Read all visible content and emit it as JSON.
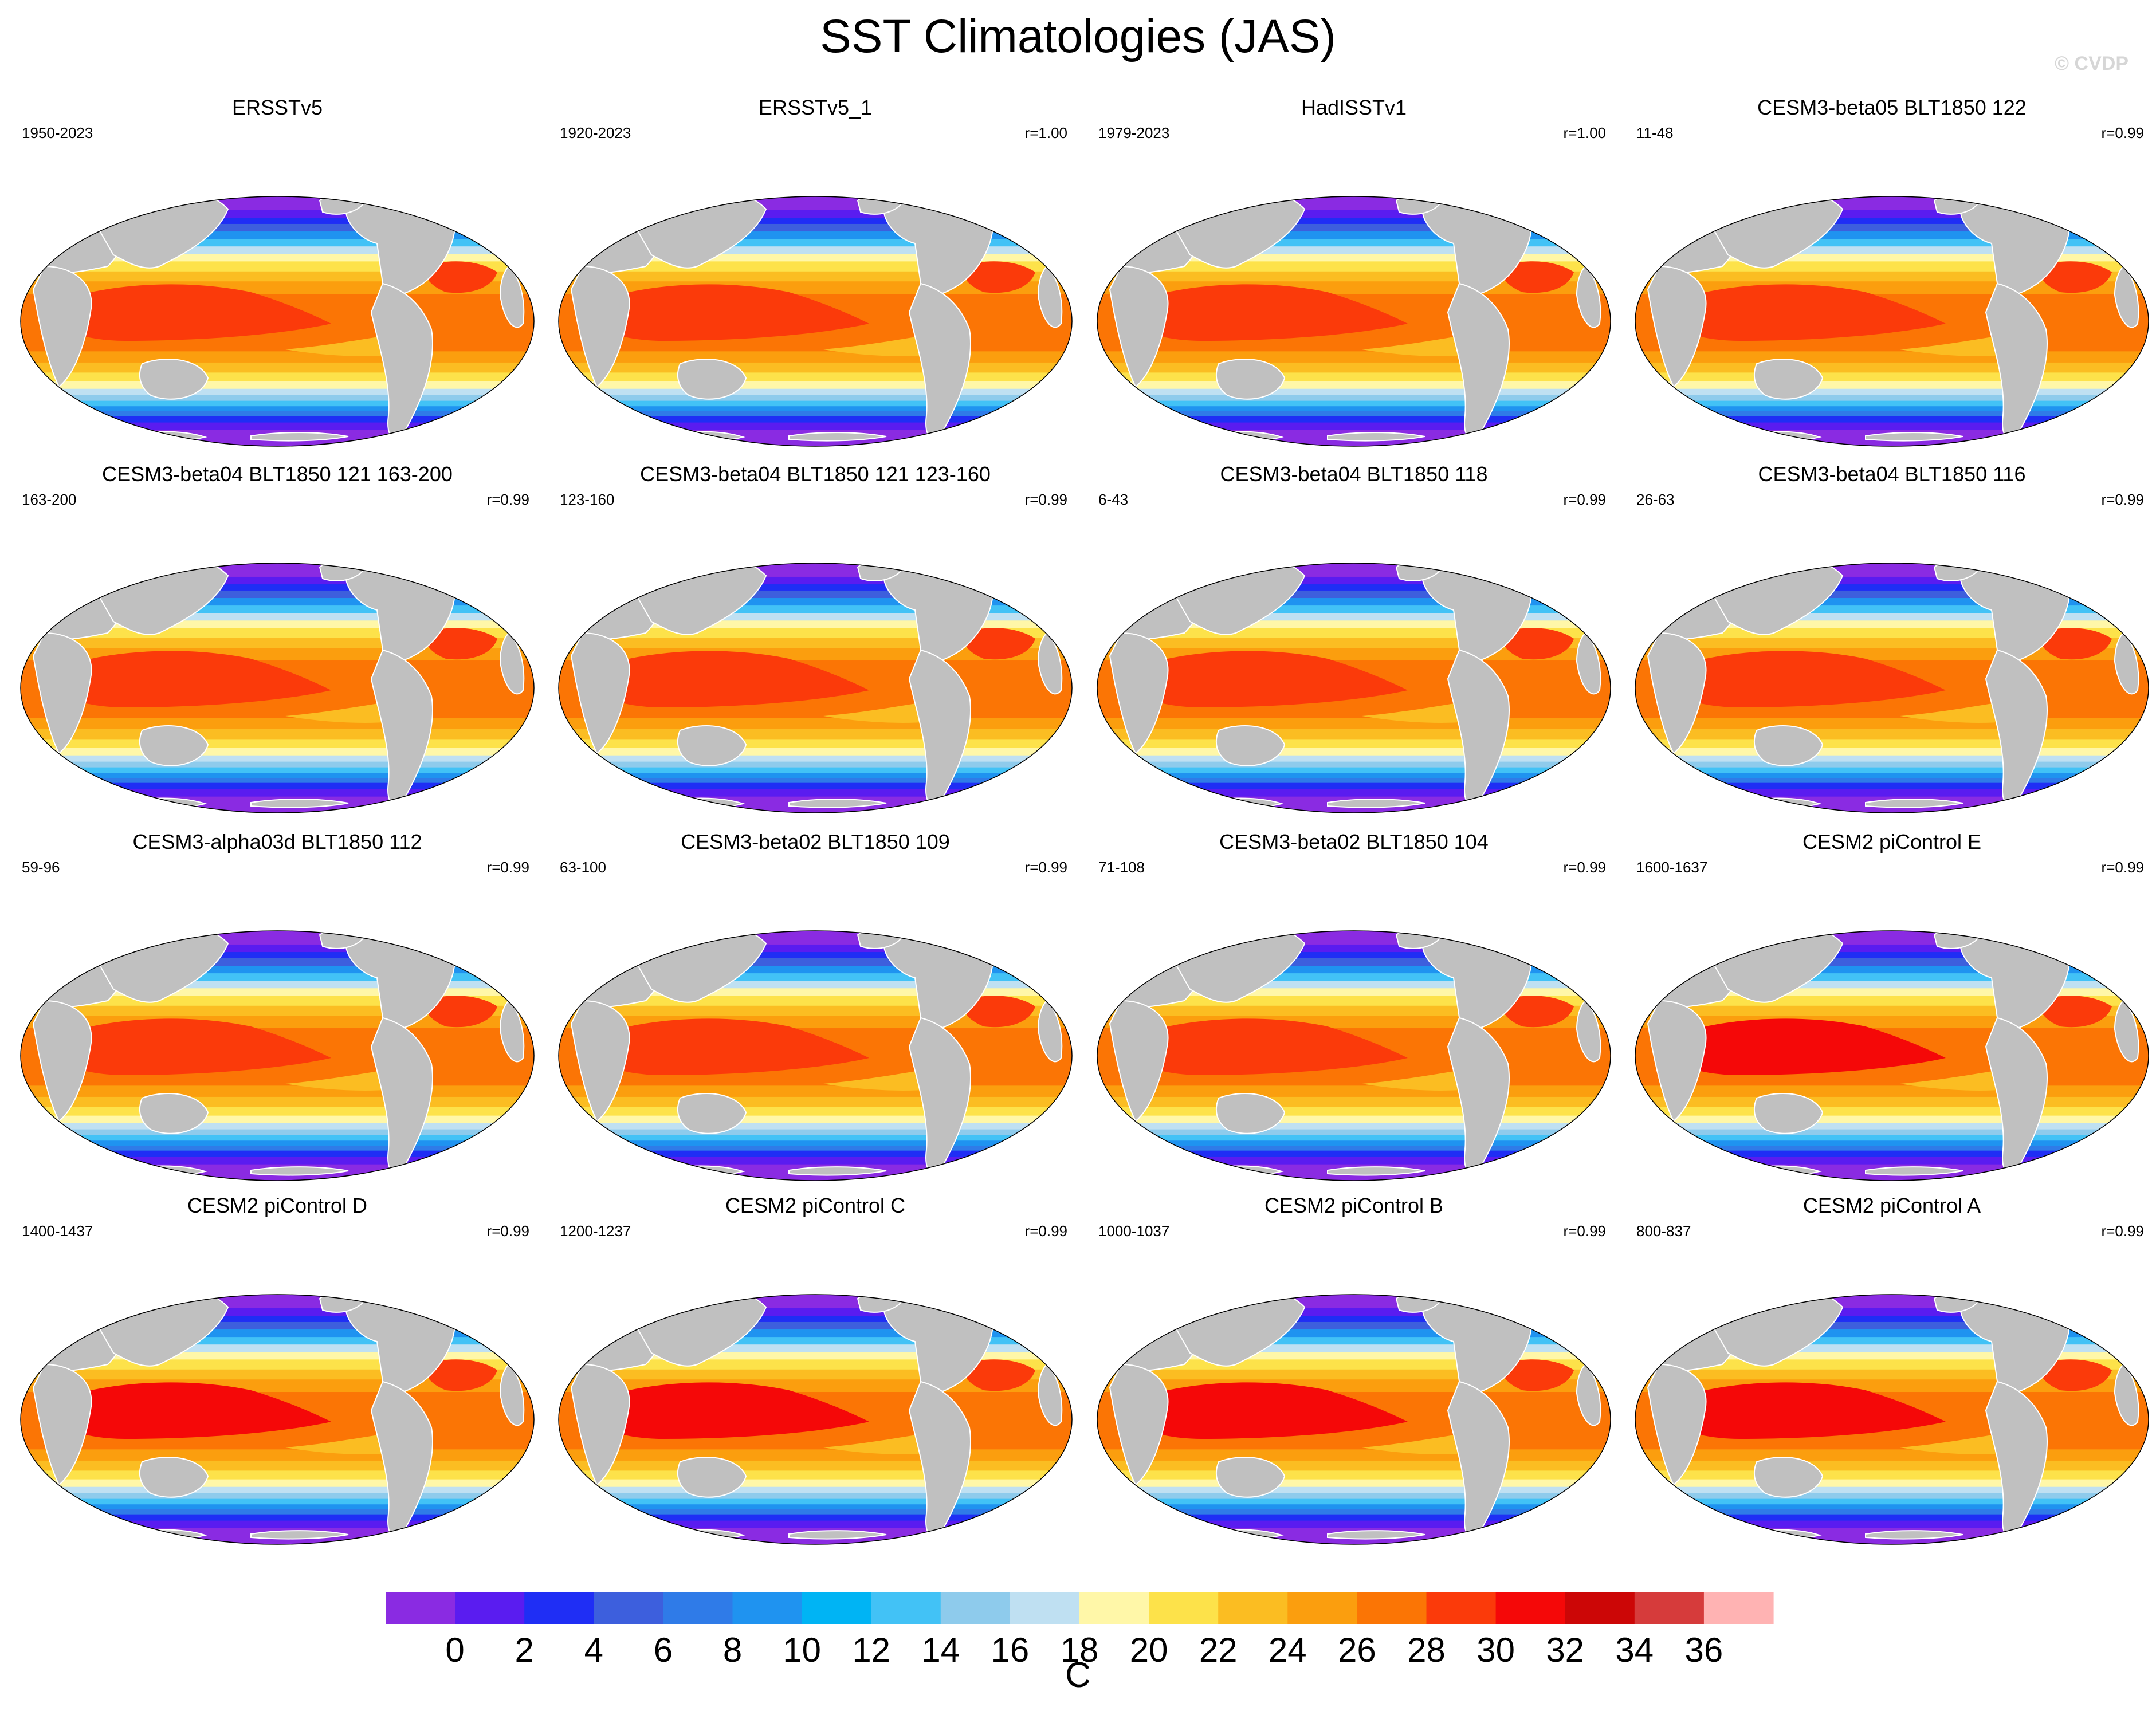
{
  "title": "SST Climatologies (JAS)",
  "watermark": "© CVDP",
  "panels": [
    {
      "title": "ERSSTv5",
      "years": "1950-2023",
      "corr": ""
    },
    {
      "title": "ERSSTv5_1",
      "years": "1920-2023",
      "corr": "r=1.00"
    },
    {
      "title": "HadISSTv1",
      "years": "1979-2023",
      "corr": "r=1.00"
    },
    {
      "title": "CESM3-beta05 BLT1850 122",
      "years": "11-48",
      "corr": "r=0.99"
    },
    {
      "title": "CESM3-beta04 BLT1850 121 163-200",
      "years": "163-200",
      "corr": "r=0.99"
    },
    {
      "title": "CESM3-beta04 BLT1850 121 123-160",
      "years": "123-160",
      "corr": "r=0.99"
    },
    {
      "title": "CESM3-beta04 BLT1850 118",
      "years": "6-43",
      "corr": "r=0.99"
    },
    {
      "title": "CESM3-beta04 BLT1850 116",
      "years": "26-63",
      "corr": "r=0.99"
    },
    {
      "title": "CESM3-alpha03d BLT1850 112",
      "years": "59-96",
      "corr": "r=0.99"
    },
    {
      "title": "CESM3-beta02 BLT1850 109",
      "years": "63-100",
      "corr": "r=0.99"
    },
    {
      "title": "CESM3-beta02 BLT1850 104",
      "years": "71-108",
      "corr": "r=0.99"
    },
    {
      "title": "CESM2 piControl E",
      "years": "1600-1637",
      "corr": "r=0.99"
    },
    {
      "title": "CESM2 piControl D",
      "years": "1400-1437",
      "corr": "r=0.99"
    },
    {
      "title": "CESM2 piControl C",
      "years": "1200-1237",
      "corr": "r=0.99"
    },
    {
      "title": "CESM2 piControl B",
      "years": "1000-1037",
      "corr": "r=0.99"
    },
    {
      "title": "CESM2 piControl A",
      "years": "800-837",
      "corr": "r=0.99"
    }
  ],
  "colorbar": {
    "units": "C",
    "tick_labels": [
      "0",
      "2",
      "4",
      "6",
      "8",
      "10",
      "12",
      "14",
      "16",
      "18",
      "20",
      "22",
      "24",
      "26",
      "28",
      "30",
      "32",
      "34",
      "36"
    ],
    "colors": [
      "#8a2be2",
      "#5a1cf0",
      "#1f2ef5",
      "#3d5fdd",
      "#2f7be8",
      "#1f93f0",
      "#00b4f4",
      "#42c2f6",
      "#8ecbec",
      "#bfe0f2",
      "#fff7a8",
      "#fde24a",
      "#fbbd22",
      "#fb9e0e",
      "#fb7505",
      "#fb3a0a",
      "#f50808",
      "#cc0606",
      "#d63b3b",
      "#ffb3b3"
    ]
  },
  "land_color": "#c0c0c0"
}
